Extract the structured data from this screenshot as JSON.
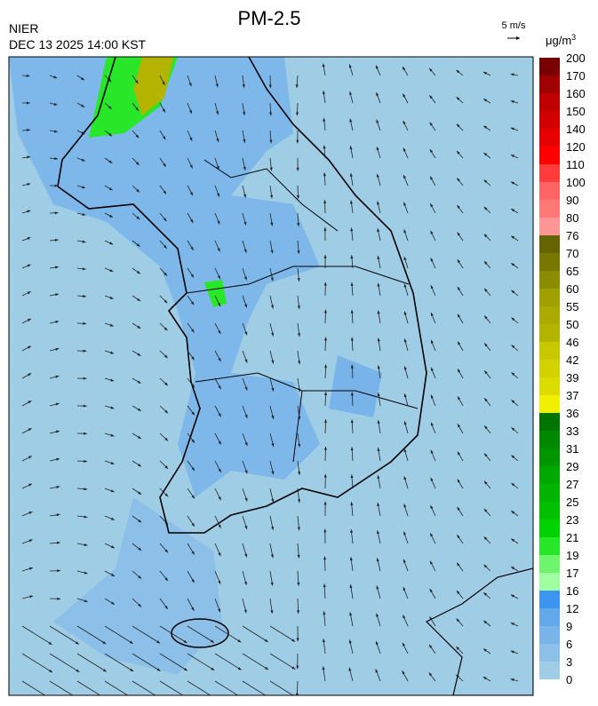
{
  "header": {
    "title": "PM-2.5",
    "agency": "NIER",
    "datetime": "DEC 13 2025 14:00 KST"
  },
  "wind_scale": "5 m/s",
  "colorbar": {
    "unit": "μg/m",
    "unit_power": "3",
    "levels": [
      0,
      3,
      6,
      9,
      12,
      16,
      17,
      19,
      21,
      23,
      25,
      27,
      29,
      31,
      33,
      36,
      37,
      39,
      42,
      46,
      50,
      55,
      60,
      65,
      70,
      76,
      80,
      90,
      100,
      110,
      120,
      140,
      150,
      160,
      170,
      200
    ],
    "colors": [
      "#a0cde6",
      "#8cc0e8",
      "#78b4ea",
      "#64a8ec",
      "#3c96f0",
      "#a0ffa0",
      "#6ef56e",
      "#28e628",
      "#00d200",
      "#00c000",
      "#00b400",
      "#00a800",
      "#009600",
      "#008800",
      "#007400",
      "#f0f000",
      "#dcdc00",
      "#d2d200",
      "#c8c800",
      "#b4b400",
      "#aaaa00",
      "#a0a000",
      "#8c8c00",
      "#787800",
      "#646400",
      "#ff9696",
      "#ff7878",
      "#ff6464",
      "#ff3c3c",
      "#ff0000",
      "#e60000",
      "#d20000",
      "#be0000",
      "#a00000",
      "#780000"
    ]
  }
}
